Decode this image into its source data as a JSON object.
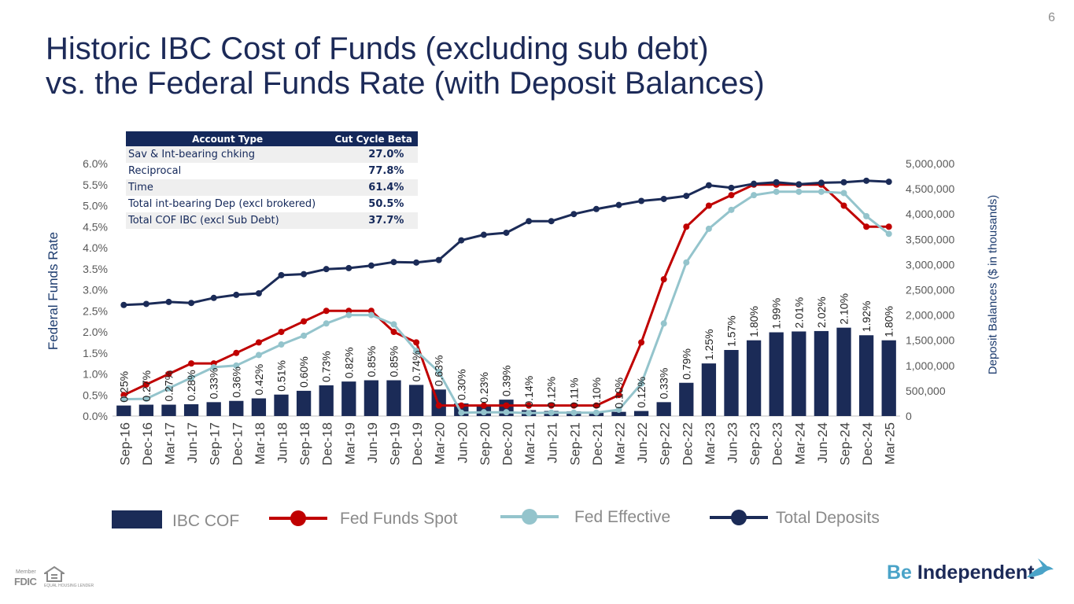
{
  "page_number": "6",
  "title_lines": [
    "Historic IBC Cost of Funds (excluding sub debt)",
    "vs. the Federal Funds Rate (with Deposit Balances)"
  ],
  "colors": {
    "navy": "#1b2b57",
    "red": "#c00000",
    "lightblue": "#94c4cc",
    "text_blue": "#1c3b6e"
  },
  "beta_table": {
    "headers": [
      "Account Type",
      "Cut Cycle Beta"
    ],
    "rows": [
      [
        "Sav & Int-bearing chking",
        "27.0%"
      ],
      [
        "Reciprocal",
        "77.8%"
      ],
      [
        "Time",
        "61.4%"
      ],
      [
        "Total int-bearing Dep  (excl brokered)",
        "50.5%"
      ],
      [
        "Total COF IBC (excl Sub Debt)",
        "37.7%"
      ]
    ]
  },
  "chart_data": {
    "type": "bar+line",
    "categories": [
      "Sep-16",
      "Dec-16",
      "Mar-17",
      "Jun-17",
      "Sep-17",
      "Dec-17",
      "Mar-18",
      "Jun-18",
      "Sep-18",
      "Dec-18",
      "Mar-19",
      "Jun-19",
      "Sep-19",
      "Dec-19",
      "Mar-20",
      "Jun-20",
      "Sep-20",
      "Dec-20",
      "Mar-21",
      "Jun-21",
      "Sep-21",
      "Dec-21",
      "Mar-22",
      "Jun-22",
      "Sep-22",
      "Dec-22",
      "Mar-23",
      "Jun-23",
      "Sep-23",
      "Dec-23",
      "Mar-24",
      "Jun-24",
      "Sep-24",
      "Dec-24",
      "Mar-25"
    ],
    "ylabel_left": "Federal Funds Rate",
    "ylabel_right": "Deposit Balances ($ in thousands)",
    "ylim_left": [
      0,
      6.0
    ],
    "yticks_left": [
      "0.0%",
      "0.5%",
      "1.0%",
      "1.5%",
      "2.0%",
      "2.5%",
      "3.0%",
      "3.5%",
      "4.0%",
      "4.5%",
      "5.0%",
      "5.5%",
      "6.0%"
    ],
    "ylim_right": [
      0,
      5000000
    ],
    "yticks_right": [
      "0",
      "500,000",
      "1,000,000",
      "1,500,000",
      "2,000,000",
      "2,500,000",
      "3,000,000",
      "3,500,000",
      "4,000,000",
      "4,500,000",
      "5,000,000"
    ],
    "series": [
      {
        "name": "IBC COF",
        "kind": "bar",
        "axis": "left",
        "values": [
          0.25,
          0.27,
          0.27,
          0.28,
          0.33,
          0.36,
          0.42,
          0.51,
          0.6,
          0.73,
          0.82,
          0.85,
          0.85,
          0.74,
          0.63,
          0.3,
          0.23,
          0.39,
          0.14,
          0.12,
          0.11,
          0.1,
          0.1,
          0.12,
          0.33,
          0.79,
          1.25,
          1.57,
          1.8,
          1.99,
          2.01,
          2.02,
          2.1,
          1.92,
          1.8
        ],
        "labels": [
          "0.25%",
          "0.27%",
          "0.27%",
          "0.28%",
          "0.33%",
          "0.36%",
          "0.42%",
          "0.51%",
          "0.60%",
          "0.73%",
          "0.82%",
          "0.85%",
          "0.85%",
          "0.74%",
          "0.63%",
          "0.30%",
          "0.23%",
          "0.39%",
          "0.14%",
          "0.12%",
          "0.11%",
          "0.10%",
          "0.10%",
          "0.12%",
          "0.33%",
          "0.79%",
          "1.25%",
          "1.57%",
          "1.80%",
          "1.99%",
          "2.01%",
          "2.02%",
          "2.10%",
          "1.92%",
          "1.80%"
        ]
      },
      {
        "name": "Fed Funds Spot",
        "kind": "line",
        "axis": "left",
        "values": [
          0.5,
          0.75,
          1.0,
          1.25,
          1.25,
          1.5,
          1.75,
          2.0,
          2.25,
          2.5,
          2.5,
          2.5,
          2.0,
          1.75,
          0.25,
          0.25,
          0.25,
          0.25,
          0.25,
          0.25,
          0.25,
          0.25,
          0.5,
          1.75,
          3.25,
          4.5,
          5.0,
          5.25,
          5.5,
          5.5,
          5.5,
          5.5,
          5.0,
          4.5,
          4.5
        ]
      },
      {
        "name": "Fed Effective",
        "kind": "line",
        "axis": "left",
        "values": [
          0.4,
          0.41,
          0.66,
          0.91,
          1.16,
          1.2,
          1.45,
          1.7,
          1.91,
          2.2,
          2.4,
          2.4,
          2.18,
          1.55,
          1.05,
          0.08,
          0.09,
          0.09,
          0.07,
          0.08,
          0.08,
          0.08,
          0.15,
          0.77,
          2.2,
          3.65,
          4.45,
          4.9,
          5.25,
          5.33,
          5.33,
          5.33,
          5.3,
          4.75,
          4.33
        ]
      },
      {
        "name": "Total Deposits",
        "kind": "line",
        "axis": "right",
        "values": [
          2200000,
          2220000,
          2260000,
          2240000,
          2340000,
          2400000,
          2430000,
          2790000,
          2810000,
          2910000,
          2930000,
          2980000,
          3050000,
          3040000,
          3090000,
          3480000,
          3590000,
          3630000,
          3860000,
          3860000,
          4000000,
          4100000,
          4180000,
          4260000,
          4300000,
          4360000,
          4570000,
          4520000,
          4600000,
          4630000,
          4590000,
          4620000,
          4630000,
          4660000,
          4640000
        ]
      }
    ],
    "legend": [
      {
        "name": "IBC COF",
        "style": "bar"
      },
      {
        "name": "Fed Funds Spot",
        "style": "line"
      },
      {
        "name": "Fed Effective",
        "style": "line"
      },
      {
        "name": "Total Deposits",
        "style": "line"
      }
    ],
    "legend_position": "bottom"
  },
  "footer": {
    "fdic_member": "Member",
    "fdic": "FDIC",
    "equal_housing": "EQUAL HOUSING LENDER",
    "brand_be": "Be",
    "brand_independent": "Independent"
  }
}
